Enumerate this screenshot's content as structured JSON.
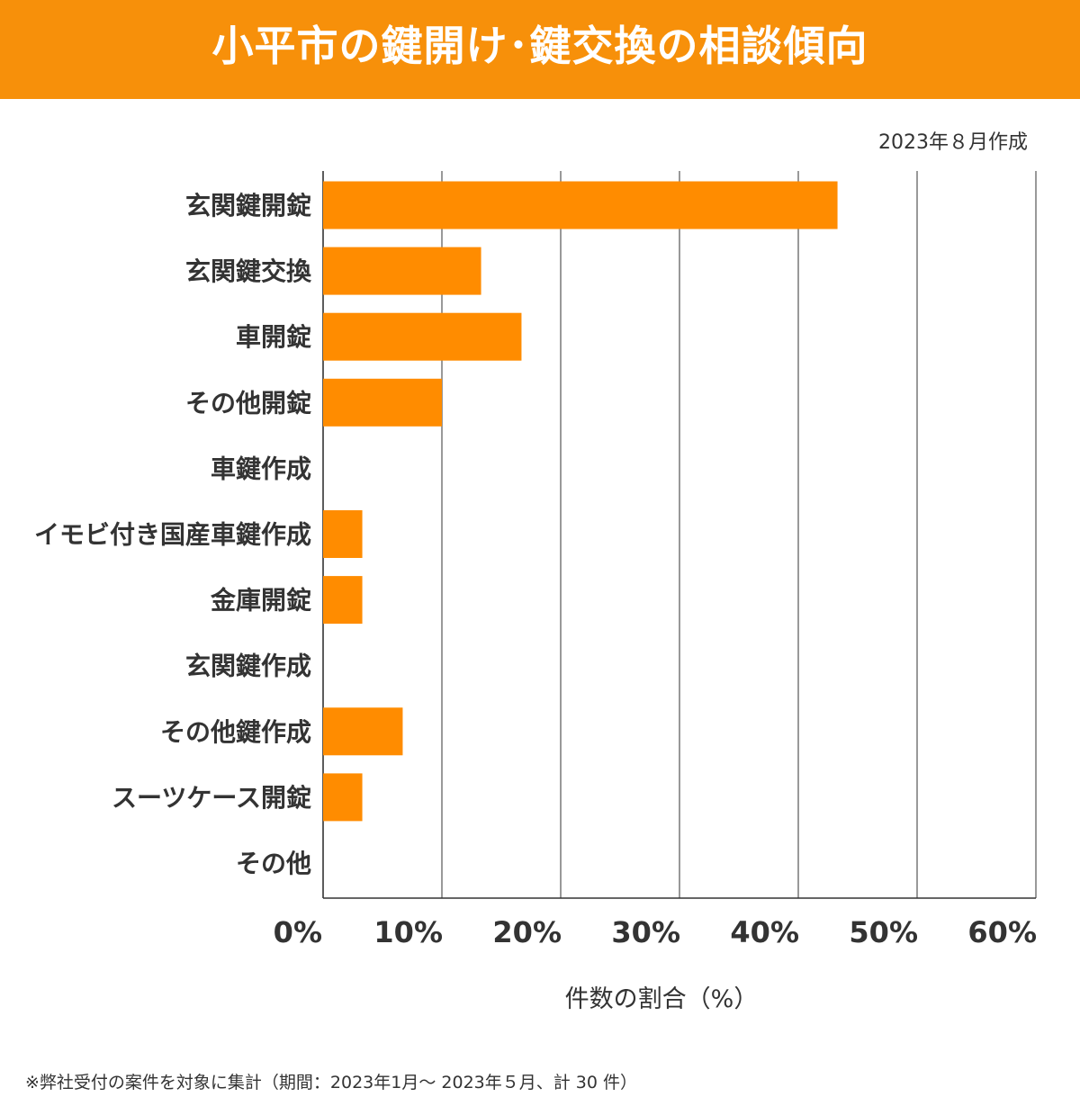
{
  "title": "小平市の鍵開け･鍵交換の相談傾向",
  "date_note": "2023年８月作成",
  "footnote": "※弊社受付の案件を対象に集計（期間：2023年1月～ 2023年５月、計 30 件）",
  "colors": {
    "accent": "#f7900a",
    "bar": "#ff8c00",
    "grid": "#333333"
  },
  "chart_data": {
    "type": "bar",
    "orientation": "horizontal",
    "title": "",
    "categories": [
      "玄関鍵開錠",
      "玄関鍵交換",
      "車開錠",
      "その他開錠",
      "車鍵作成",
      "イモビ付き国産車鍵作成",
      "金庫開錠",
      "玄関鍵作成",
      "その他鍵作成",
      "スーツケース開錠",
      "その他"
    ],
    "values": [
      43.3,
      13.3,
      16.7,
      10.0,
      0,
      3.3,
      3.3,
      0,
      6.7,
      3.3,
      0
    ],
    "xlabel": "件数の割合（%）",
    "ylabel": "",
    "xlim": [
      0,
      60
    ],
    "xticks": [
      0,
      10,
      20,
      30,
      40,
      50,
      60
    ],
    "xtick_labels": [
      "0%",
      "10%",
      "20%",
      "30%",
      "40%",
      "50%",
      "60%"
    ],
    "grid": true
  }
}
